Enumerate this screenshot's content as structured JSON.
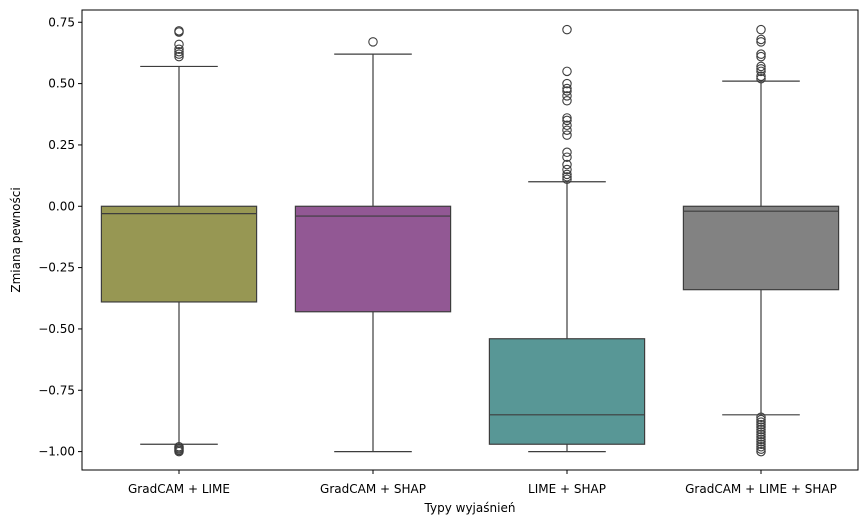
{
  "chart_data": {
    "type": "box",
    "title": "",
    "xlabel": "Typy wyjaśnień",
    "ylabel": "Zmiana pewności",
    "ylim": [
      -1.075,
      0.8
    ],
    "yticks": [
      -1.0,
      -0.75,
      -0.5,
      -0.25,
      0.0,
      0.25,
      0.5,
      0.75
    ],
    "ytick_labels": [
      "−1.00",
      "−0.75",
      "−0.50",
      "−0.25",
      "0.00",
      "0.25",
      "0.50",
      "0.75"
    ],
    "grid": false,
    "legend": "none",
    "categories": [
      "GradCAM + LIME",
      "GradCAM + SHAP",
      "LIME + SHAP",
      "GradCAM + LIME + SHAP"
    ],
    "boxes": [
      {
        "category": "GradCAM + LIME",
        "color": "#979753",
        "whisker_low": -0.97,
        "q1": -0.39,
        "median": -0.03,
        "q3": 0.0,
        "whisker_high": 0.57,
        "outliers_high": [
          0.61,
          0.62,
          0.63,
          0.64,
          0.66,
          0.71,
          0.715
        ],
        "outliers_low": [
          -0.98,
          -0.985,
          -0.99,
          -0.995,
          -1.0
        ]
      },
      {
        "category": "GradCAM + SHAP",
        "color": "#925894",
        "whisker_low": -1.0,
        "q1": -0.43,
        "median": -0.04,
        "q3": 0.0,
        "whisker_high": 0.62,
        "outliers_high": [
          0.67
        ],
        "outliers_low": []
      },
      {
        "category": "LIME + SHAP",
        "color": "#589796",
        "whisker_low": -1.0,
        "q1": -0.97,
        "median": -0.85,
        "q3": -0.54,
        "whisker_high": 0.1,
        "outliers_high": [
          0.11,
          0.12,
          0.13,
          0.15,
          0.17,
          0.2,
          0.22,
          0.29,
          0.31,
          0.33,
          0.35,
          0.36,
          0.43,
          0.45,
          0.47,
          0.48,
          0.5,
          0.55,
          0.72
        ],
        "outliers_low": []
      },
      {
        "category": "GradCAM + LIME + SHAP",
        "color": "#828282",
        "whisker_low": -0.85,
        "q1": -0.34,
        "median": -0.02,
        "q3": 0.0,
        "whisker_high": 0.51,
        "outliers_high": [
          0.52,
          0.53,
          0.55,
          0.56,
          0.57,
          0.61,
          0.62,
          0.67,
          0.68,
          0.72
        ],
        "outliers_low": [
          -0.86,
          -0.87,
          -0.88,
          -0.89,
          -0.9,
          -0.91,
          -0.92,
          -0.93,
          -0.94,
          -0.95,
          -0.96,
          -0.97,
          -0.98,
          -0.99,
          -1.0
        ]
      }
    ]
  }
}
